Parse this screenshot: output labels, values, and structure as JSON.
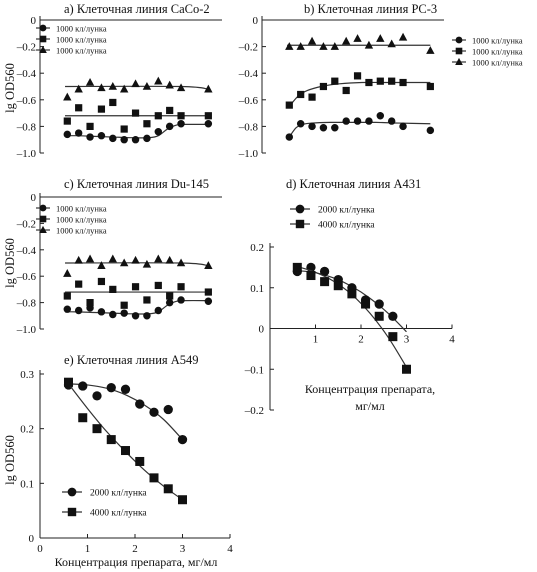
{
  "figure": {
    "ylabel": "lg OD560",
    "xlabel": "Концентрация препарата, мг/мл",
    "xlabel_d": [
      "Концентрация препарата,",
      "мг/мл"
    ]
  },
  "chart_data": [
    {
      "id": "a",
      "type": "scatter",
      "title": "a) Клеточная линия CaCo-2",
      "ylim": [
        -1.0,
        0
      ],
      "yticks": [
        "0",
        "–0.2",
        "–0.4",
        "–0.6",
        "–0.8",
        "–1.0"
      ],
      "series": [
        {
          "name": "1000 кл/лунка",
          "marker": "circle",
          "x": [
            0.6,
            0.85,
            1.1,
            1.35,
            1.6,
            1.85,
            2.1,
            2.35,
            2.6,
            2.85,
            3.1,
            3.7
          ],
          "y": [
            -0.86,
            -0.85,
            -0.88,
            -0.87,
            -0.89,
            -0.9,
            -0.9,
            -0.89,
            -0.84,
            -0.8,
            -0.78,
            -0.78
          ],
          "fit": {
            "x": [
              0.55,
              0.8,
              1.2,
              1.6,
              2.0,
              2.4,
              2.6,
              2.8,
              3.0,
              3.2,
              3.7
            ],
            "y": [
              -0.87,
              -0.87,
              -0.875,
              -0.88,
              -0.885,
              -0.885,
              -0.87,
              -0.82,
              -0.79,
              -0.785,
              -0.785
            ]
          }
        },
        {
          "name": "1000 кл/лунка",
          "marker": "square",
          "x": [
            0.6,
            0.85,
            1.1,
            1.35,
            1.6,
            1.85,
            2.1,
            2.35,
            2.6,
            2.85,
            3.1,
            3.7
          ],
          "y": [
            -0.76,
            -0.66,
            -0.8,
            -0.67,
            -0.62,
            -0.82,
            -0.7,
            -0.78,
            -0.72,
            -0.68,
            -0.72,
            -0.72
          ],
          "fit": {
            "x": [
              0.55,
              3.7
            ],
            "y": [
              -0.72,
              -0.72
            ]
          }
        },
        {
          "name": "1000 кл/лунка",
          "marker": "triangle",
          "x": [
            0.6,
            0.85,
            1.1,
            1.35,
            1.6,
            1.85,
            2.1,
            2.35,
            2.6,
            2.85,
            3.1,
            3.7
          ],
          "y": [
            -0.58,
            -0.52,
            -0.47,
            -0.51,
            -0.5,
            -0.52,
            -0.48,
            -0.5,
            -0.46,
            -0.49,
            -0.51,
            -0.52
          ],
          "fit": {
            "x": [
              0.55,
              3.1,
              3.7
            ],
            "y": [
              -0.5,
              -0.5,
              -0.52
            ]
          }
        }
      ]
    },
    {
      "id": "b",
      "type": "scatter",
      "title": "b) Клеточная линия PC-3",
      "ylim": [
        -1.0,
        0
      ],
      "yticks": [
        "0",
        "–0.2",
        "–0.4",
        "–0.6",
        "–0.8",
        "–1.0"
      ],
      "series": [
        {
          "name": "1000 кл/лунка",
          "marker": "circle",
          "x": [
            0.6,
            0.85,
            1.1,
            1.35,
            1.6,
            1.85,
            2.1,
            2.35,
            2.6,
            2.85,
            3.1,
            3.7
          ],
          "y": [
            -0.88,
            -0.78,
            -0.8,
            -0.81,
            -0.81,
            -0.76,
            -0.76,
            -0.76,
            -0.72,
            -0.76,
            -0.8,
            -0.83
          ],
          "fit": {
            "x": [
              0.6,
              0.75,
              0.9,
              1.1,
              1.5,
              2.0,
              2.5,
              3.0,
              3.7
            ],
            "y": [
              -0.88,
              -0.81,
              -0.785,
              -0.775,
              -0.77,
              -0.77,
              -0.77,
              -0.775,
              -0.78
            ]
          }
        },
        {
          "name": "1000 кл/лунка",
          "marker": "square",
          "x": [
            0.6,
            0.85,
            1.1,
            1.35,
            1.6,
            1.85,
            2.1,
            2.35,
            2.6,
            2.85,
            3.1,
            3.7
          ],
          "y": [
            -0.64,
            -0.56,
            -0.58,
            -0.5,
            -0.46,
            -0.53,
            -0.42,
            -0.47,
            -0.46,
            -0.46,
            -0.47,
            -0.5
          ],
          "fit": {
            "x": [
              0.6,
              0.8,
              1.0,
              1.3,
              1.7,
              2.2,
              2.8,
              3.7
            ],
            "y": [
              -0.65,
              -0.57,
              -0.53,
              -0.5,
              -0.48,
              -0.47,
              -0.47,
              -0.47
            ]
          }
        },
        {
          "name": "1000 кл/лунка",
          "marker": "triangle",
          "x": [
            0.6,
            0.85,
            1.1,
            1.35,
            1.6,
            1.85,
            2.1,
            2.35,
            2.6,
            2.85,
            3.1,
            3.7
          ],
          "y": [
            -0.2,
            -0.2,
            -0.16,
            -0.2,
            -0.2,
            -0.16,
            -0.14,
            -0.19,
            -0.14,
            -0.18,
            -0.13,
            -0.23
          ],
          "fit": {
            "x": [
              0.55,
              3.7
            ],
            "y": [
              -0.19,
              -0.19
            ]
          }
        }
      ]
    },
    {
      "id": "c",
      "type": "scatter",
      "title": "c) Клеточная линия Du-145",
      "ylim": [
        -1.0,
        0
      ],
      "yticks": [
        "0",
        "–0.2",
        "–0.4",
        "–0.6",
        "–0.8",
        "–1.0"
      ],
      "series": [
        {
          "name": "1000 кл/лунка",
          "marker": "circle",
          "x": [
            0.6,
            0.85,
            1.1,
            1.35,
            1.6,
            1.85,
            2.1,
            2.35,
            2.6,
            2.85,
            3.1,
            3.7
          ],
          "y": [
            -0.85,
            -0.86,
            -0.84,
            -0.87,
            -0.89,
            -0.88,
            -0.9,
            -0.9,
            -0.86,
            -0.8,
            -0.78,
            -0.79
          ],
          "fit": {
            "x": [
              0.55,
              0.8,
              1.2,
              1.6,
              2.0,
              2.4,
              2.6,
              2.8,
              3.0,
              3.2,
              3.7
            ],
            "y": [
              -0.87,
              -0.87,
              -0.875,
              -0.88,
              -0.885,
              -0.885,
              -0.87,
              -0.82,
              -0.79,
              -0.785,
              -0.785
            ]
          }
        },
        {
          "name": "1000 кл/лунка",
          "marker": "square",
          "x": [
            0.6,
            0.85,
            1.1,
            1.35,
            1.6,
            1.85,
            2.1,
            2.35,
            2.6,
            2.85,
            3.1,
            3.7
          ],
          "y": [
            -0.75,
            -0.66,
            -0.8,
            -0.64,
            -0.7,
            -0.82,
            -0.68,
            -0.78,
            -0.67,
            -0.75,
            -0.68,
            -0.72
          ],
          "fit": {
            "x": [
              0.55,
              3.7
            ],
            "y": [
              -0.72,
              -0.72
            ]
          }
        },
        {
          "name": "1000 кл/лунка",
          "marker": "triangle",
          "x": [
            0.6,
            0.85,
            1.1,
            1.35,
            1.6,
            1.85,
            2.1,
            2.35,
            2.6,
            2.85,
            3.1,
            3.7
          ],
          "y": [
            -0.58,
            -0.48,
            -0.47,
            -0.52,
            -0.47,
            -0.5,
            -0.48,
            -0.51,
            -0.47,
            -0.48,
            -0.5,
            -0.52
          ],
          "fit": {
            "x": [
              0.55,
              3.1,
              3.7
            ],
            "y": [
              -0.5,
              -0.5,
              -0.52
            ]
          }
        }
      ]
    },
    {
      "id": "d",
      "type": "scatter",
      "title": "d) Клеточная линия A431",
      "xlim": [
        0,
        4
      ],
      "ylim": [
        -0.2,
        0.2
      ],
      "xticks": [
        "0",
        "1",
        "2",
        "3",
        "4"
      ],
      "yticks": [
        "0.2",
        "0.1",
        "0",
        "–0.1",
        "–0.2"
      ],
      "series": [
        {
          "name": "2000 кл/лунка",
          "marker": "circle",
          "x": [
            0.6,
            0.9,
            1.2,
            1.5,
            1.8,
            2.1,
            2.4,
            2.7
          ],
          "y": [
            0.14,
            0.15,
            0.14,
            0.12,
            0.1,
            0.07,
            0.06,
            0.03
          ],
          "fit": {
            "x": [
              0.6,
              1.0,
              1.4,
              1.8,
              2.2,
              2.6,
              3.0
            ],
            "y": [
              0.142,
              0.137,
              0.124,
              0.103,
              0.074,
              0.037,
              -0.008
            ]
          }
        },
        {
          "name": "4000 кл/лунка",
          "marker": "square",
          "x": [
            0.6,
            0.9,
            1.2,
            1.5,
            1.8,
            2.1,
            2.4,
            2.7,
            3.0
          ],
          "y": [
            0.15,
            0.13,
            0.115,
            0.105,
            0.085,
            0.06,
            0.03,
            -0.02,
            -0.1
          ],
          "fit": {
            "x": [
              0.6,
              1.0,
              1.4,
              1.8,
              2.2,
              2.6,
              3.0
            ],
            "y": [
              0.152,
              0.138,
              0.116,
              0.083,
              0.037,
              -0.022,
              -0.095
            ]
          }
        }
      ]
    },
    {
      "id": "e",
      "type": "scatter",
      "title": "e) Клеточная линия A549",
      "xlim": [
        0,
        4
      ],
      "ylim": [
        0,
        0.3
      ],
      "xticks": [
        "0",
        "1",
        "2",
        "3",
        "4"
      ],
      "yticks": [
        "0.3",
        "0.2",
        "0.1",
        "0"
      ],
      "series": [
        {
          "name": "2000 кл/лунка",
          "marker": "circle",
          "x": [
            0.6,
            0.9,
            1.2,
            1.5,
            1.8,
            2.1,
            2.4,
            2.7,
            3.0
          ],
          "y": [
            0.28,
            0.278,
            0.26,
            0.275,
            0.272,
            0.245,
            0.23,
            0.235,
            0.18
          ],
          "fit": {
            "x": [
              0.6,
              1.0,
              1.4,
              1.8,
              2.2,
              2.6,
              3.0
            ],
            "y": [
              0.282,
              0.28,
              0.274,
              0.262,
              0.243,
              0.217,
              0.18
            ]
          }
        },
        {
          "name": "4000 кл/лунка",
          "marker": "square",
          "x": [
            0.6,
            0.9,
            1.2,
            1.5,
            1.8,
            2.1,
            2.4,
            2.7,
            3.0
          ],
          "y": [
            0.285,
            0.22,
            0.2,
            0.18,
            0.16,
            0.14,
            0.11,
            0.09,
            0.07
          ],
          "fit": {
            "x": [
              0.6,
              1.0,
              1.4,
              1.8,
              2.2,
              2.6,
              3.0
            ],
            "y": [
              0.282,
              0.237,
              0.195,
              0.158,
              0.124,
              0.095,
              0.07
            ]
          }
        }
      ]
    }
  ]
}
